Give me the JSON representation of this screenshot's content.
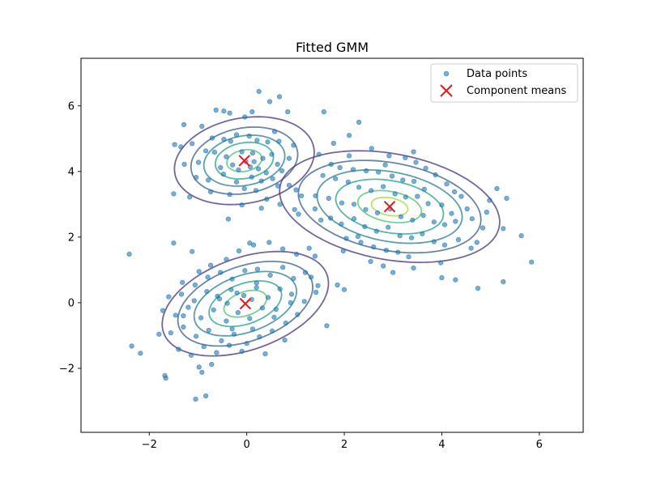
{
  "chart_data": {
    "type": "scatter",
    "title": "Fitted GMM",
    "xlabel": "",
    "ylabel": "",
    "xlim": [
      -3.4,
      6.9
    ],
    "ylim": [
      -3.95,
      7.45
    ],
    "xticks": [
      -2,
      0,
      2,
      4,
      6
    ],
    "yticks": [
      -2,
      0,
      2,
      4,
      6
    ],
    "xtick_labels": [
      "−2",
      "0",
      "2",
      "4",
      "6"
    ],
    "ytick_labels": [
      "−2",
      "0",
      "2",
      "4",
      "6"
    ],
    "grid": false,
    "legend": {
      "location": "upper right",
      "entries": [
        "Data points",
        "Component means"
      ]
    },
    "colors": {
      "points": "#1f77b4",
      "means": "#e41a1c",
      "contours": [
        "#46327e",
        "#365c8d",
        "#277f8e",
        "#1fa187",
        "#4ac16d",
        "#a0da39"
      ]
    },
    "means": [
      {
        "x": -0.05,
        "y": 4.33
      },
      {
        "x": 2.93,
        "y": 2.93
      },
      {
        "x": -0.03,
        "y": -0.03
      }
    ],
    "contour_ellipses": [
      {
        "component": 1,
        "cx": -0.05,
        "cy": 4.33,
        "rx": [
          1.52,
          1.16,
          0.88,
          0.63,
          0.38
        ],
        "ry": [
          1.24,
          0.95,
          0.72,
          0.52,
          0.31
        ],
        "angle_deg": 35
      },
      {
        "component": 2,
        "cx": 2.93,
        "cy": 2.93,
        "rx": [
          2.35,
          1.95,
          1.55,
          1.15,
          0.68,
          0.39
        ],
        "ry": [
          1.57,
          1.3,
          1.03,
          0.77,
          0.45,
          0.26
        ],
        "angle_deg": -22
      },
      {
        "component": 3,
        "cx": -0.03,
        "cy": -0.03,
        "rx": [
          1.95,
          1.58,
          1.2,
          0.85,
          0.5
        ],
        "ry": [
          1.28,
          1.04,
          0.79,
          0.56,
          0.33
        ],
        "angle_deg": 40
      }
    ],
    "series": [
      {
        "name": "Data points",
        "type": "scatter",
        "points": [
          [
            -0.47,
            5.84
          ],
          [
            -0.63,
            5.87
          ],
          [
            -1.29,
            5.43
          ],
          [
            0.25,
            6.44
          ],
          [
            -0.35,
            5.78
          ],
          [
            -0.04,
            5.66
          ],
          [
            0.11,
            5.82
          ],
          [
            0.67,
            6.28
          ],
          [
            0.47,
            6.13
          ],
          [
            -1.35,
            4.75
          ],
          [
            -1.12,
            4.85
          ],
          [
            -0.71,
            5.02
          ],
          [
            -0.47,
            4.98
          ],
          [
            -0.33,
            4.92
          ],
          [
            -0.21,
            5.12
          ],
          [
            0.05,
            5.08
          ],
          [
            0.21,
            4.95
          ],
          [
            0.43,
            4.9
          ],
          [
            0.57,
            5.22
          ],
          [
            0.66,
            4.92
          ],
          [
            -0.84,
            4.63
          ],
          [
            -0.66,
            4.59
          ],
          [
            -0.42,
            4.45
          ],
          [
            -0.1,
            4.6
          ],
          [
            0.12,
            4.56
          ],
          [
            0.33,
            4.4
          ],
          [
            0.51,
            4.52
          ],
          [
            -1.28,
            4.22
          ],
          [
            -0.99,
            4.28
          ],
          [
            -0.54,
            4.12
          ],
          [
            -0.29,
            4.2
          ],
          [
            0.07,
            4.14
          ],
          [
            0.24,
            4.08
          ],
          [
            0.4,
            3.96
          ],
          [
            0.63,
            4.22
          ],
          [
            0.87,
            4.4
          ],
          [
            -1.04,
            3.82
          ],
          [
            -0.79,
            3.74
          ],
          [
            -0.48,
            3.92
          ],
          [
            -0.21,
            3.68
          ],
          [
            0.1,
            3.83
          ],
          [
            0.3,
            3.71
          ],
          [
            0.53,
            3.78
          ],
          [
            0.87,
            3.58
          ],
          [
            1.01,
            3.44
          ],
          [
            -1.5,
            3.32
          ],
          [
            -1.17,
            3.22
          ],
          [
            -0.74,
            3.38
          ],
          [
            -0.35,
            3.3
          ],
          [
            -0.05,
            3.48
          ],
          [
            0.19,
            3.42
          ],
          [
            0.41,
            3.16
          ],
          [
            0.68,
            3.0
          ],
          [
            0.98,
            2.84
          ],
          [
            -0.1,
            2.98
          ],
          [
            -0.38,
            2.55
          ],
          [
            0.3,
            2.88
          ],
          [
            -1.48,
            4.82
          ],
          [
            -0.92,
            5.38
          ],
          [
            0.84,
            5.82
          ],
          [
            -0.02,
            4.3
          ],
          [
            -0.17,
            4.05
          ],
          [
            0.15,
            4.3
          ],
          [
            2.56,
            4.7
          ],
          [
            2.92,
            4.48
          ],
          [
            3.25,
            4.42
          ],
          [
            3.47,
            4.28
          ],
          [
            3.67,
            4.1
          ],
          [
            3.87,
            3.9
          ],
          [
            4.1,
            3.62
          ],
          [
            4.26,
            3.38
          ],
          [
            4.4,
            3.24
          ],
          [
            1.73,
            4.22
          ],
          [
            1.91,
            4.12
          ],
          [
            2.18,
            4.06
          ],
          [
            2.45,
            4.02
          ],
          [
            2.7,
            3.98
          ],
          [
            2.98,
            3.86
          ],
          [
            3.2,
            3.74
          ],
          [
            3.43,
            3.7
          ],
          [
            3.64,
            3.46
          ],
          [
            1.56,
            3.88
          ],
          [
            1.82,
            3.78
          ],
          [
            2.08,
            3.68
          ],
          [
            2.3,
            3.52
          ],
          [
            2.55,
            3.42
          ],
          [
            2.8,
            3.54
          ],
          [
            3.04,
            3.32
          ],
          [
            3.26,
            3.22
          ],
          [
            3.5,
            3.24
          ],
          [
            3.72,
            3.02
          ],
          [
            4.0,
            2.98
          ],
          [
            4.2,
            2.72
          ],
          [
            4.52,
            2.86
          ],
          [
            4.92,
            2.76
          ],
          [
            5.13,
            3.48
          ],
          [
            1.41,
            3.26
          ],
          [
            1.68,
            3.18
          ],
          [
            1.95,
            3.04
          ],
          [
            2.2,
            3.0
          ],
          [
            2.44,
            2.84
          ],
          [
            2.68,
            2.74
          ],
          [
            2.94,
            2.86
          ],
          [
            3.16,
            2.62
          ],
          [
            3.4,
            2.52
          ],
          [
            3.62,
            2.66
          ],
          [
            3.84,
            2.46
          ],
          [
            4.06,
            2.38
          ],
          [
            4.28,
            2.48
          ],
          [
            4.62,
            2.56
          ],
          [
            4.84,
            2.28
          ],
          [
            5.26,
            2.26
          ],
          [
            5.63,
            2.04
          ],
          [
            5.84,
            1.24
          ],
          [
            1.12,
            3.26
          ],
          [
            1.4,
            2.86
          ],
          [
            1.72,
            2.58
          ],
          [
            1.94,
            2.4
          ],
          [
            2.2,
            2.56
          ],
          [
            2.42,
            2.32
          ],
          [
            2.66,
            2.18
          ],
          [
            2.9,
            2.3
          ],
          [
            3.14,
            2.04
          ],
          [
            3.38,
            1.98
          ],
          [
            3.6,
            2.1
          ],
          [
            3.84,
            1.86
          ],
          [
            4.06,
            1.76
          ],
          [
            4.34,
            1.92
          ],
          [
            4.6,
            1.66
          ],
          [
            2.04,
            1.96
          ],
          [
            2.34,
            1.84
          ],
          [
            2.6,
            1.7
          ],
          [
            2.86,
            1.6
          ],
          [
            3.1,
            1.54
          ],
          [
            3.32,
            1.4
          ],
          [
            2.28,
            2.02
          ],
          [
            2.54,
            1.26
          ],
          [
            2.8,
            1.12
          ],
          [
            3.0,
            0.92
          ],
          [
            3.42,
            1.06
          ],
          [
            4.0,
            0.76
          ],
          [
            4.28,
            0.7
          ],
          [
            4.74,
            0.44
          ],
          [
            5.26,
            0.64
          ],
          [
            0.64,
            3.56
          ],
          [
            1.06,
            2.7
          ],
          [
            1.52,
            2.52
          ],
          [
            0.72,
            4.02
          ],
          [
            0.96,
            4.8
          ],
          [
            1.48,
            4.52
          ],
          [
            1.78,
            4.86
          ],
          [
            2.1,
            4.48
          ],
          [
            1.58,
            5.82
          ],
          [
            2.1,
            5.1
          ],
          [
            2.84,
            4.2
          ],
          [
            3.42,
            4.6
          ],
          [
            2.3,
            5.5
          ],
          [
            1.98,
            1.58
          ],
          [
            4.98,
            3.12
          ],
          [
            5.33,
            3.18
          ],
          [
            3.98,
            1.22
          ],
          [
            4.72,
            1.84
          ],
          [
            -0.98,
            0.95
          ],
          [
            -0.74,
            1.14
          ],
          [
            -0.42,
            1.32
          ],
          [
            -0.16,
            1.58
          ],
          [
            0.14,
            1.76
          ],
          [
            0.46,
            1.84
          ],
          [
            0.74,
            1.64
          ],
          [
            1.02,
            1.48
          ],
          [
            1.28,
            1.66
          ],
          [
            -1.32,
            0.62
          ],
          [
            -1.06,
            0.54
          ],
          [
            -0.8,
            0.78
          ],
          [
            -0.54,
            0.92
          ],
          [
            -0.3,
            0.72
          ],
          [
            -0.04,
            0.98
          ],
          [
            0.22,
            1.02
          ],
          [
            0.48,
            0.84
          ],
          [
            0.74,
            1.08
          ],
          [
            0.96,
            0.74
          ],
          [
            1.2,
            0.92
          ],
          [
            1.46,
            0.52
          ],
          [
            -1.6,
            0.18
          ],
          [
            -1.34,
            0.26
          ],
          [
            -1.08,
            0.06
          ],
          [
            -0.82,
            0.34
          ],
          [
            -0.56,
            0.12
          ],
          [
            -0.32,
            0.4
          ],
          [
            -0.06,
            0.22
          ],
          [
            0.2,
            0.46
          ],
          [
            0.44,
            0.16
          ],
          [
            0.68,
            0.42
          ],
          [
            0.92,
            0.26
          ],
          [
            1.18,
            0.04
          ],
          [
            1.42,
            0.32
          ],
          [
            -1.72,
            -0.24
          ],
          [
            -1.46,
            -0.38
          ],
          [
            -1.2,
            -0.14
          ],
          [
            -0.94,
            -0.46
          ],
          [
            -0.68,
            -0.22
          ],
          [
            -0.42,
            -0.56
          ],
          [
            -0.18,
            -0.3
          ],
          [
            0.06,
            -0.48
          ],
          [
            0.32,
            -0.16
          ],
          [
            0.56,
            -0.44
          ],
          [
            0.8,
            -0.62
          ],
          [
            1.04,
            -0.36
          ],
          [
            -1.56,
            -0.92
          ],
          [
            -1.3,
            -0.74
          ],
          [
            -1.04,
            -1.02
          ],
          [
            -0.78,
            -0.84
          ],
          [
            -0.52,
            -1.16
          ],
          [
            -0.26,
            -0.96
          ],
          [
            0.0,
            -1.24
          ],
          [
            0.26,
            -1.04
          ],
          [
            0.52,
            -0.86
          ],
          [
            0.78,
            -1.14
          ],
          [
            -1.4,
            -1.42
          ],
          [
            -1.14,
            -1.6
          ],
          [
            -0.88,
            -1.34
          ],
          [
            -0.62,
            -1.52
          ],
          [
            -0.36,
            -1.3
          ],
          [
            -0.1,
            -1.48
          ],
          [
            0.38,
            -1.56
          ],
          [
            -2.18,
            -1.54
          ],
          [
            -2.36,
            -1.32
          ],
          [
            -1.68,
            -2.22
          ],
          [
            -1.66,
            -2.3
          ],
          [
            -0.92,
            -2.12
          ],
          [
            -0.98,
            -1.96
          ],
          [
            -0.72,
            -1.88
          ],
          [
            -1.05,
            -2.94
          ],
          [
            -0.84,
            -2.84
          ],
          [
            -2.41,
            1.48
          ],
          [
            -1.5,
            1.82
          ],
          [
            -1.12,
            1.56
          ],
          [
            0.06,
            1.82
          ],
          [
            1.4,
            1.42
          ],
          [
            1.32,
            0.78
          ],
          [
            1.86,
            0.54
          ],
          [
            2.0,
            0.4
          ],
          [
            1.64,
            -0.7
          ],
          [
            -1.8,
            -0.96
          ],
          [
            0.2,
            0.6
          ],
          [
            -0.4,
            -0.02
          ],
          [
            0.12,
            -0.8
          ],
          [
            0.6,
            -0.2
          ],
          [
            -0.6,
            0.2
          ],
          [
            -0.3,
            -0.8
          ],
          [
            0.9,
            0.0
          ],
          [
            -1.3,
            -0.4
          ],
          [
            0.1,
            0.1
          ],
          [
            -0.2,
            0.3
          ]
        ]
      },
      {
        "name": "Component means",
        "type": "scatter",
        "points": [
          [
            -0.05,
            4.33
          ],
          [
            2.93,
            2.93
          ],
          [
            -0.03,
            -0.03
          ]
        ]
      }
    ]
  }
}
